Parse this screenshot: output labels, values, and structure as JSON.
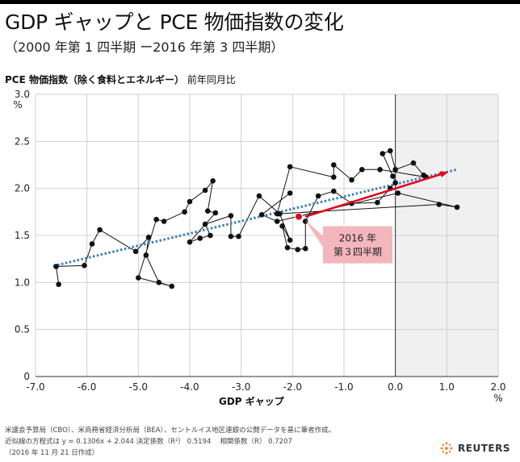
{
  "header": {
    "title": "GDP ギャップと PCE 物価指数の変化",
    "subtitle": "（2000 年第 1 四半期 ー2016 年第 3 四半期）",
    "series_label_bold": "PCE 物価指数（除く食料とエネルギー）",
    "series_label_rest": "前年同月比"
  },
  "footer": {
    "line1": "米議会予算局（CBO）、米商務省経済分析局（BEA）、セントルイス地区連銀の公開データを基に筆者作成。",
    "line2": "近似線の方程式は y = 0.1306x + 2.044 決定係数（R²） 0.5194　 相関係数（R） 0.7207",
    "line3": "（2016 年 11 月 21 日作成）"
  },
  "logo": {
    "text": "REUTERS",
    "icon": "reuters-dots-icon"
  },
  "chart_data": {
    "type": "scatter",
    "xlabel": "GDP ギャップ",
    "x_unit": "%",
    "y_unit": "%",
    "xlim": [
      -7.0,
      2.0
    ],
    "ylim": [
      0,
      3.0
    ],
    "x_ticks": [
      "-7.0",
      "-6.0",
      "-5.0",
      "-4.0",
      "-3.0",
      "-2.0",
      "-1.0",
      "0.0",
      "1.0",
      "2.0"
    ],
    "y_ticks": [
      "0",
      "0.5",
      "1.0",
      "1.5",
      "2.0",
      "2.5",
      "3.0"
    ],
    "grid": true,
    "shaded_region": {
      "x_from": 0.0,
      "x_to": 2.0,
      "color": "#f0f0f0"
    },
    "trendline": {
      "slope": 0.1306,
      "intercept": 2.044,
      "x_from": -6.65,
      "x_to": 1.2,
      "color": "#3d7fb9",
      "style": "dotted"
    },
    "points": [
      [
        -6.55,
        0.98
      ],
      [
        -6.6,
        1.17
      ],
      [
        -6.05,
        1.18
      ],
      [
        -5.9,
        1.41
      ],
      [
        -5.75,
        1.56
      ],
      [
        -5.05,
        1.33
      ],
      [
        -4.8,
        1.48
      ],
      [
        -4.85,
        1.29
      ],
      [
        -4.6,
        1.0
      ],
      [
        -4.35,
        0.96
      ],
      [
        -5.0,
        1.05
      ],
      [
        -4.65,
        1.67
      ],
      [
        -4.5,
        1.65
      ],
      [
        -4.1,
        1.75
      ],
      [
        -4.0,
        1.86
      ],
      [
        -3.7,
        1.98
      ],
      [
        -3.55,
        2.08
      ],
      [
        -3.65,
        1.76
      ],
      [
        -3.5,
        1.74
      ],
      [
        -4.0,
        1.43
      ],
      [
        -3.8,
        1.47
      ],
      [
        -3.6,
        1.5
      ],
      [
        -3.7,
        1.62
      ],
      [
        -3.2,
        1.71
      ],
      [
        -3.2,
        1.49
      ],
      [
        -3.05,
        1.49
      ],
      [
        -2.65,
        1.92
      ],
      [
        -2.25,
        1.73
      ],
      [
        -2.05,
        1.45
      ],
      [
        -2.2,
        1.6
      ],
      [
        -2.1,
        1.37
      ],
      [
        -1.9,
        1.35
      ],
      [
        -1.75,
        1.36
      ],
      [
        -1.75,
        1.65
      ],
      [
        -1.5,
        1.92
      ],
      [
        -1.2,
        1.97
      ],
      [
        -0.85,
        1.84
      ],
      [
        -0.35,
        1.85
      ],
      [
        -0.1,
        2.0
      ],
      [
        0.0,
        2.06
      ],
      [
        -0.05,
        2.13
      ],
      [
        -0.25,
        2.37
      ],
      [
        -0.1,
        2.4
      ],
      [
        0.0,
        2.2
      ],
      [
        0.35,
        2.27
      ],
      [
        0.55,
        2.14
      ],
      [
        0.6,
        2.12
      ],
      [
        -0.3,
        2.2
      ],
      [
        -0.65,
        2.2
      ],
      [
        -0.85,
        2.09
      ],
      [
        -1.2,
        2.25
      ],
      [
        -1.2,
        2.12
      ],
      [
        -2.05,
        2.23
      ],
      [
        -2.3,
        1.73
      ],
      [
        0.85,
        1.83
      ],
      [
        1.2,
        1.8
      ],
      [
        0.05,
        1.95
      ],
      [
        -2.3,
        1.65
      ],
      [
        -2.6,
        1.72
      ],
      [
        -2.05,
        1.95
      ]
    ],
    "highlight_point": {
      "x": -1.88,
      "y": 1.7,
      "color": "#e3001b"
    },
    "annotation": {
      "line1": "2016 年",
      "line2": "第３四半期",
      "bg": "#f4b6bd"
    },
    "arrow": {
      "x_from": -1.75,
      "y_from": 1.7,
      "x_to": 1.0,
      "y_to": 2.17,
      "color": "#e3001b"
    }
  }
}
